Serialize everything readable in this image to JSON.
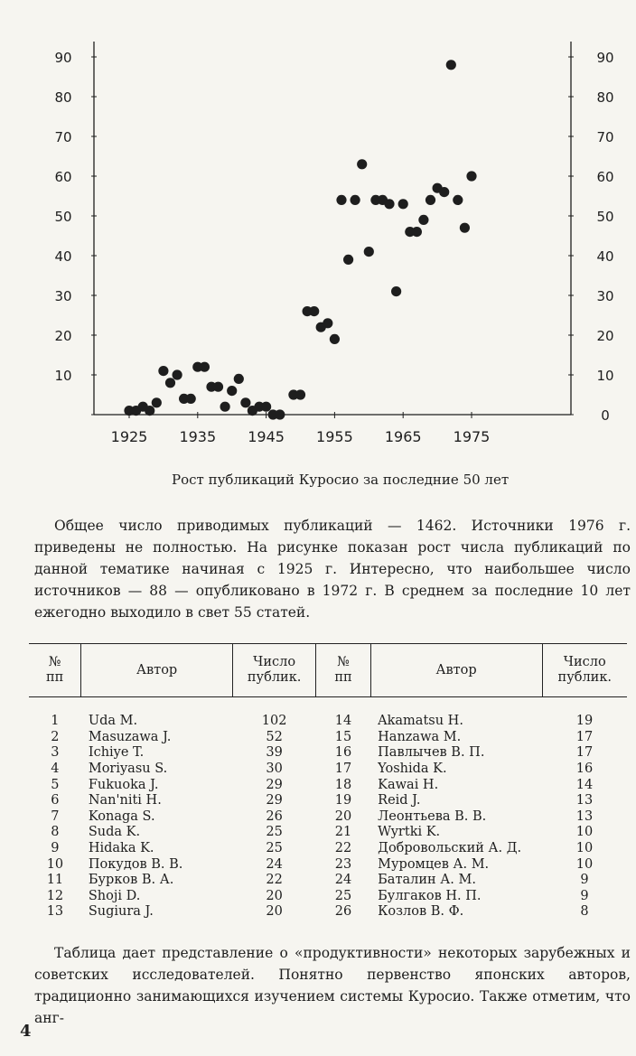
{
  "chart_data": {
    "type": "scatter",
    "title": "",
    "xlabel": "",
    "ylabel": "",
    "x_ticks": [
      "1925",
      "1935",
      "1945",
      "1955",
      "1965",
      "1975"
    ],
    "y_ticks_left": [
      "0",
      "10",
      "20",
      "30",
      "40",
      "50",
      "60",
      "70",
      "80",
      "90"
    ],
    "y_ticks_right": [
      "0",
      "10",
      "20",
      "30",
      "40",
      "50",
      "60",
      "70",
      "80",
      "90"
    ],
    "xlim": [
      1922,
      1979
    ],
    "ylim": [
      0,
      92
    ],
    "grid": false,
    "points": [
      [
        1925,
        1
      ],
      [
        1926,
        1
      ],
      [
        1927,
        2
      ],
      [
        1928,
        1
      ],
      [
        1929,
        3
      ],
      [
        1930,
        11
      ],
      [
        1931,
        8
      ],
      [
        1932,
        10
      ],
      [
        1933,
        4
      ],
      [
        1934,
        4
      ],
      [
        1935,
        12
      ],
      [
        1936,
        12
      ],
      [
        1937,
        7
      ],
      [
        1938,
        7
      ],
      [
        1939,
        2
      ],
      [
        1940,
        6
      ],
      [
        1941,
        9
      ],
      [
        1942,
        3
      ],
      [
        1943,
        1
      ],
      [
        1944,
        2
      ],
      [
        1945,
        2
      ],
      [
        1946,
        0
      ],
      [
        1947,
        0
      ],
      [
        1949,
        5
      ],
      [
        1950,
        5
      ],
      [
        1951,
        26
      ],
      [
        1952,
        26
      ],
      [
        1953,
        22
      ],
      [
        1954,
        23
      ],
      [
        1955,
        19
      ],
      [
        1956,
        54
      ],
      [
        1957,
        39
      ],
      [
        1958,
        54
      ],
      [
        1959,
        63
      ],
      [
        1960,
        41
      ],
      [
        1961,
        54
      ],
      [
        1962,
        54
      ],
      [
        1963,
        53
      ],
      [
        1964,
        31
      ],
      [
        1965,
        53
      ],
      [
        1966,
        46
      ],
      [
        1967,
        46
      ],
      [
        1968,
        49
      ],
      [
        1969,
        54
      ],
      [
        1970,
        57
      ],
      [
        1971,
        56
      ],
      [
        1972,
        88
      ],
      [
        1973,
        54
      ],
      [
        1974,
        47
      ],
      [
        1975,
        60
      ]
    ]
  },
  "caption": "Рост публикаций Куросио за последние 50 лет",
  "paragraph1": "Общее число приводимых публикаций — 1462. Источники 1976 г. приведены не полностью. На рисунке показан рост числа публикаций по данной тематике начиная с 1925 г. Интересно, что наибольшее число источников — 88 — опубликовано в 1972 г. В среднем за последние 10 лет ежегодно выходило в свет 55 статей.",
  "table": {
    "headers": {
      "no_line1": "№",
      "no_line2": "пп",
      "author": "Автор",
      "count_line1": "Число",
      "count_line2": "публик."
    },
    "left": [
      [
        "1",
        "Uda M.",
        "102"
      ],
      [
        "2",
        "Masuzawa J.",
        "52"
      ],
      [
        "3",
        "Ichiye T.",
        "39"
      ],
      [
        "4",
        "Moriyasu S.",
        "30"
      ],
      [
        "5",
        "Fukuoka J.",
        "29"
      ],
      [
        "6",
        "Nan'niti H.",
        "29"
      ],
      [
        "7",
        "Konaga S.",
        "26"
      ],
      [
        "8",
        "Suda K.",
        "25"
      ],
      [
        "9",
        "Hidaka K.",
        "25"
      ],
      [
        "10",
        "Покудов В. В.",
        "24"
      ],
      [
        "11",
        "Бурков В. А.",
        "22"
      ],
      [
        "12",
        "Shoji D.",
        "20"
      ],
      [
        "13",
        "Sugiura J.",
        "20"
      ]
    ],
    "right": [
      [
        "14",
        "Akamatsu H.",
        "19"
      ],
      [
        "15",
        "Hanzawa M.",
        "17"
      ],
      [
        "16",
        "Павлычев В. П.",
        "17"
      ],
      [
        "17",
        "Yoshida K.",
        "16"
      ],
      [
        "18",
        "Kawai H.",
        "14"
      ],
      [
        "19",
        "Reid J.",
        "13"
      ],
      [
        "20",
        "Леонтьева В. В.",
        "13"
      ],
      [
        "21",
        "Wyrtki K.",
        "10"
      ],
      [
        "22",
        "Добровольский А. Д.",
        "10"
      ],
      [
        "23",
        "Муромцев А. М.",
        "10"
      ],
      [
        "24",
        "Баталин А. М.",
        "9"
      ],
      [
        "25",
        "Булгаков Н. П.",
        "9"
      ],
      [
        "26",
        "Козлов В. Ф.",
        "8"
      ]
    ]
  },
  "paragraph2": "Таблица дает представление о «продуктивности» некоторых зарубежных и советских исследователей. Понятно первенство японских авторов, традиционно занимающихся изучением системы Куросио. Также отметим, что анг-",
  "page_number": "4",
  "colors": {
    "ink": "#1e1e1e",
    "paper": "#f6f5f0"
  }
}
